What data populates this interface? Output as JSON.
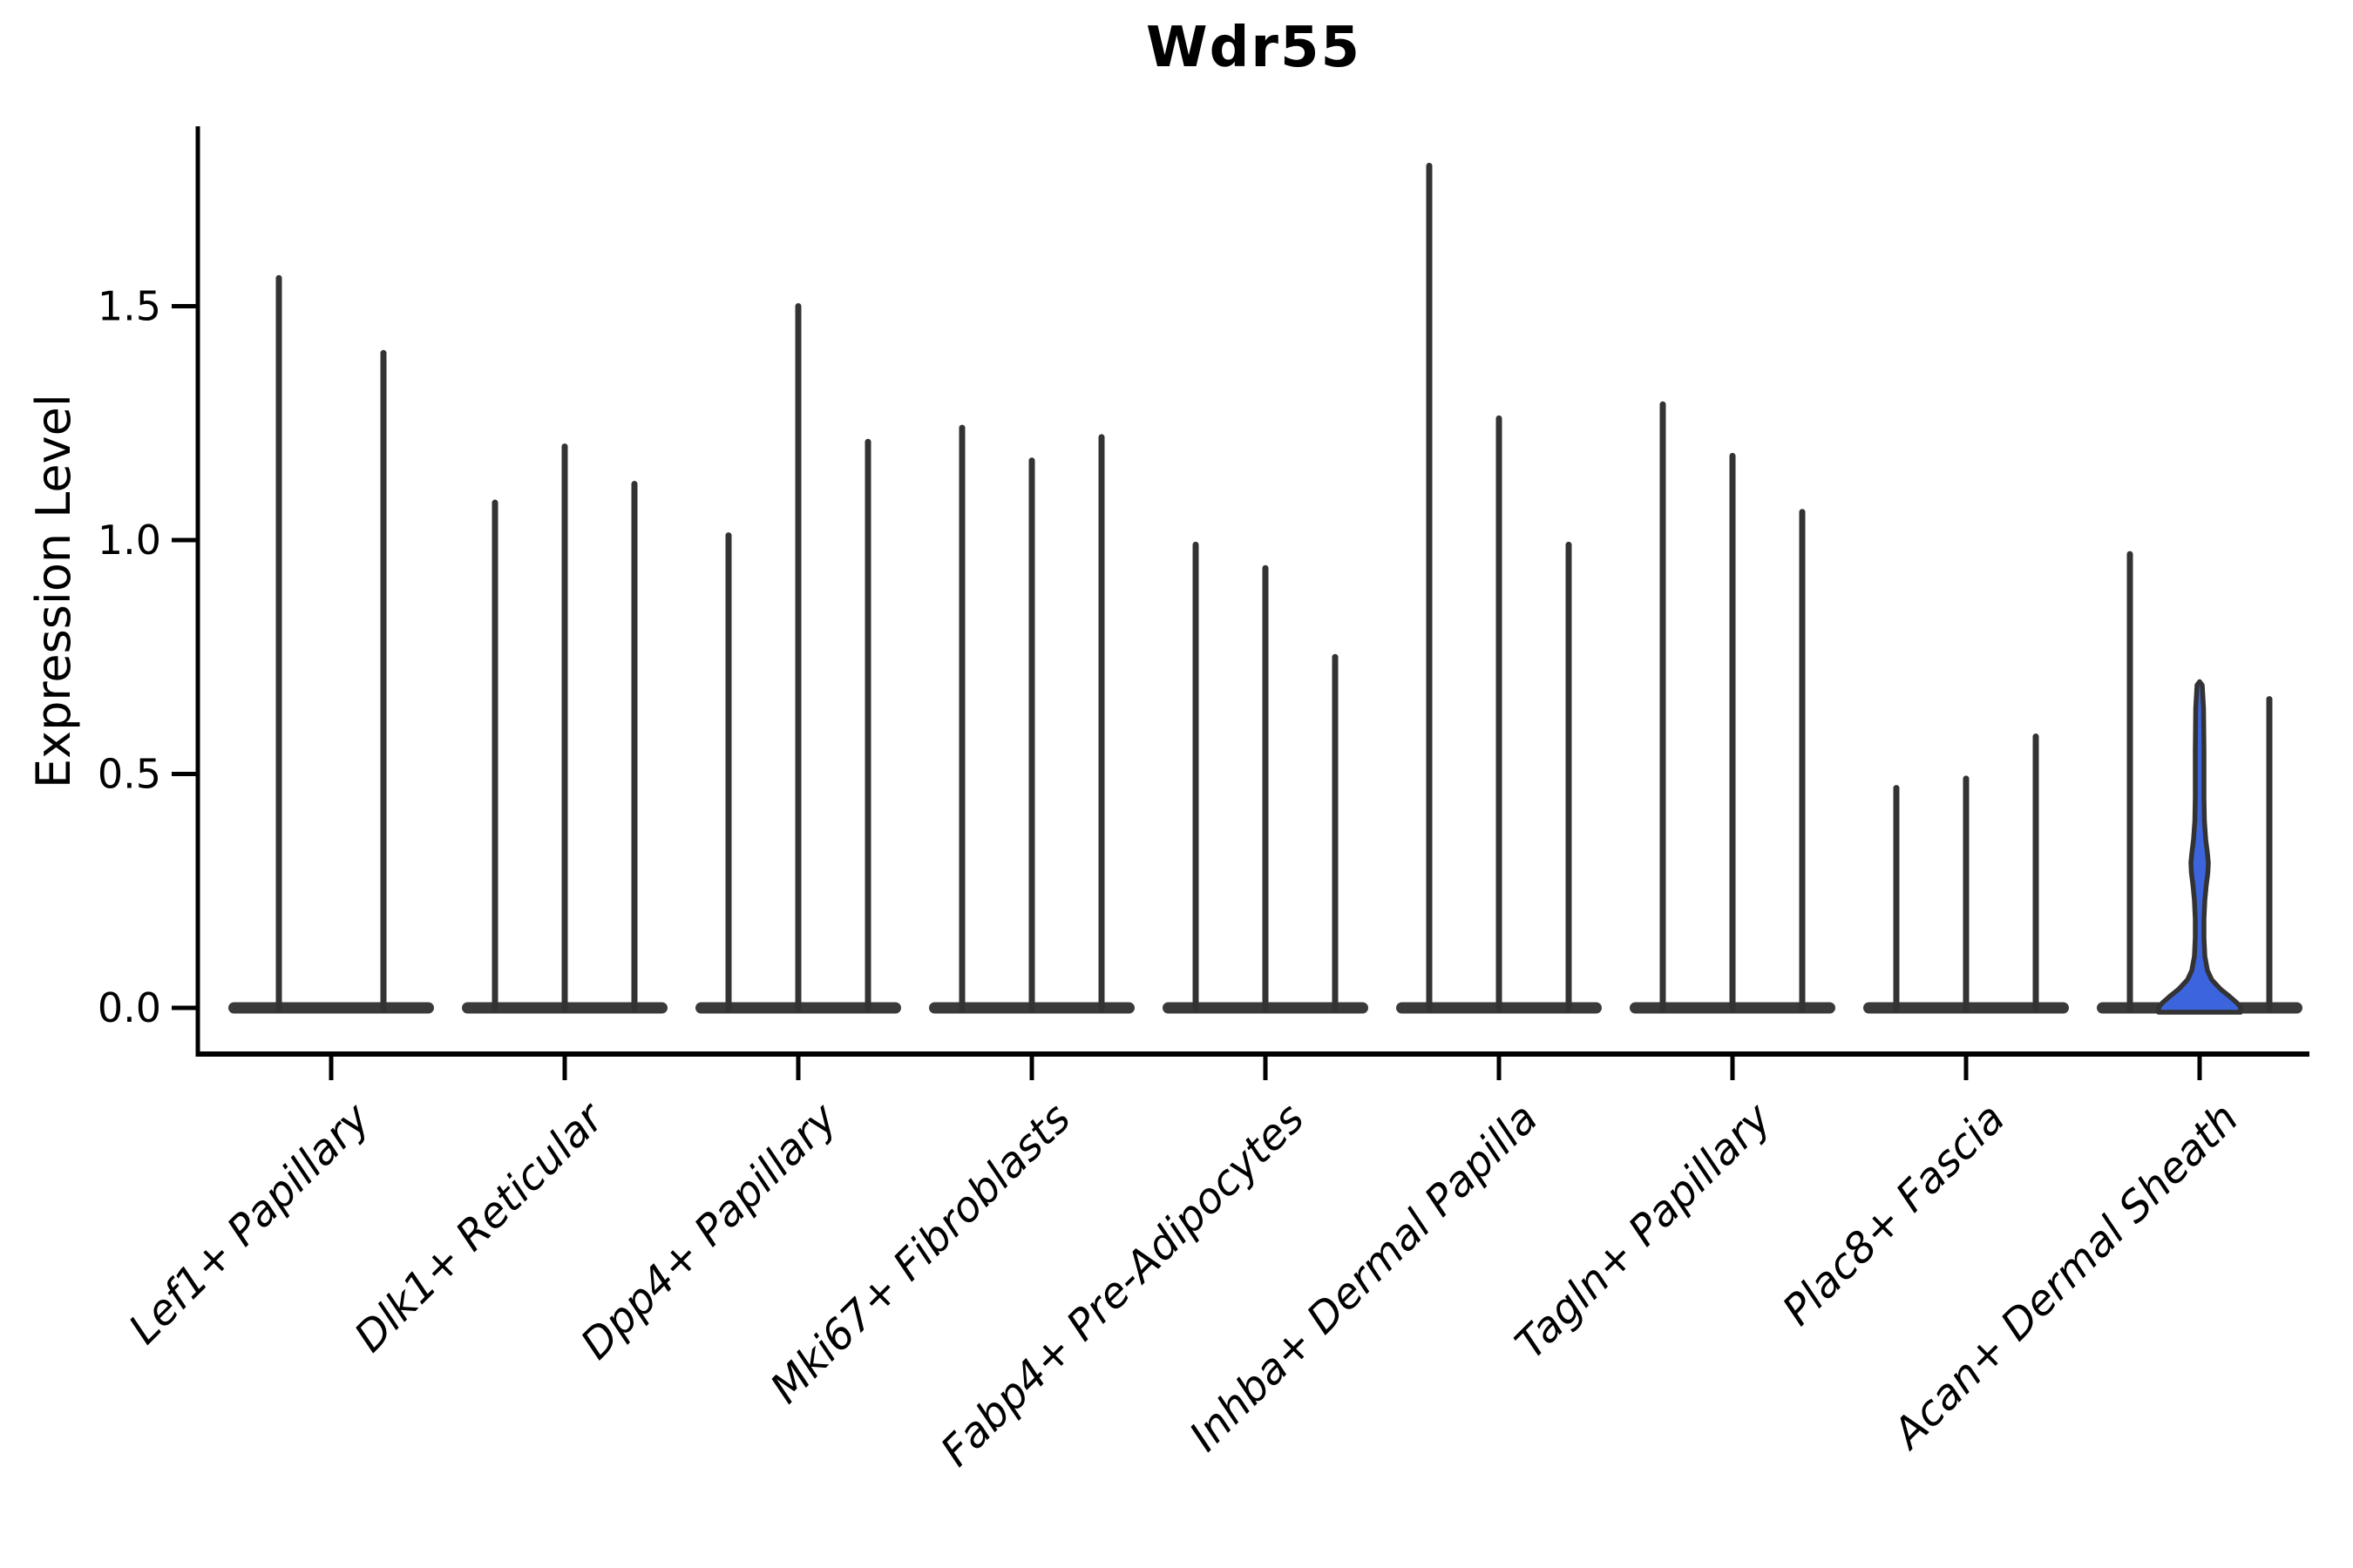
{
  "chart_data": {
    "type": "violin",
    "title": "Wdr55",
    "xlabel": "",
    "ylabel": "Expression Level",
    "ylim": [
      0,
      1.88
    ],
    "grid": false,
    "legend": "none",
    "spines": [
      "left",
      "bottom"
    ],
    "x_label_rotation": 45,
    "x_label_style": "italic",
    "yticks": [
      {
        "label": "0.0",
        "value": 0.0
      },
      {
        "label": "0.5",
        "value": 0.5
      },
      {
        "label": "1.0",
        "value": 1.0
      },
      {
        "label": "1.5",
        "value": 1.5
      }
    ],
    "categories": [
      "Lef1+ Papillary",
      "Dlk1+ Reticular",
      "Dpp4+ Papillary",
      "Mki67+ Fibroblasts",
      "Fabp4+ Pre-Adipocytes",
      "Inhba+ Dermal Papilla",
      "Tagln+ Papillary",
      "Plac8+ Fascia",
      "Acan+ Dermal Sheath"
    ],
    "groups": [
      {
        "category": "Lef1+ Papillary",
        "violins": [
          {
            "max": 1.56
          },
          {
            "max": 1.4
          }
        ]
      },
      {
        "category": "Dlk1+ Reticular",
        "violins": [
          {
            "max": 1.08
          },
          {
            "max": 1.2
          },
          {
            "max": 1.12
          }
        ]
      },
      {
        "category": "Dpp4+ Papillary",
        "violins": [
          {
            "max": 1.01
          },
          {
            "max": 1.5
          },
          {
            "max": 1.21
          }
        ]
      },
      {
        "category": "Mki67+ Fibroblasts",
        "violins": [
          {
            "max": 1.24
          },
          {
            "max": 1.17
          },
          {
            "max": 1.22
          }
        ]
      },
      {
        "category": "Fabp4+ Pre-Adipocytes",
        "violins": [
          {
            "max": 0.99
          },
          {
            "max": 0.94
          },
          {
            "max": 0.75
          }
        ]
      },
      {
        "category": "Inhba+ Dermal Papilla",
        "violins": [
          {
            "max": 1.8
          },
          {
            "max": 1.26
          },
          {
            "max": 0.99
          }
        ]
      },
      {
        "category": "Tagln+ Papillary",
        "violins": [
          {
            "max": 1.29
          },
          {
            "max": 1.18
          },
          {
            "max": 1.06
          }
        ]
      },
      {
        "category": "Plac8+ Fascia",
        "violins": [
          {
            "max": 0.47
          },
          {
            "max": 0.49
          },
          {
            "max": 0.58
          }
        ]
      },
      {
        "category": "Acan+ Dermal Sheath",
        "violins": [
          {
            "max": 0.97
          },
          {
            "max": 0.69,
            "highlight": true,
            "bulge_value": 0.31
          },
          {
            "max": 0.66
          }
        ]
      }
    ],
    "colors": {
      "violin_line": "#333333",
      "baseline_blob": "#3a3a3a",
      "highlight_fill": "#3C64DC",
      "axis": "#000000",
      "text": "#000000"
    }
  }
}
